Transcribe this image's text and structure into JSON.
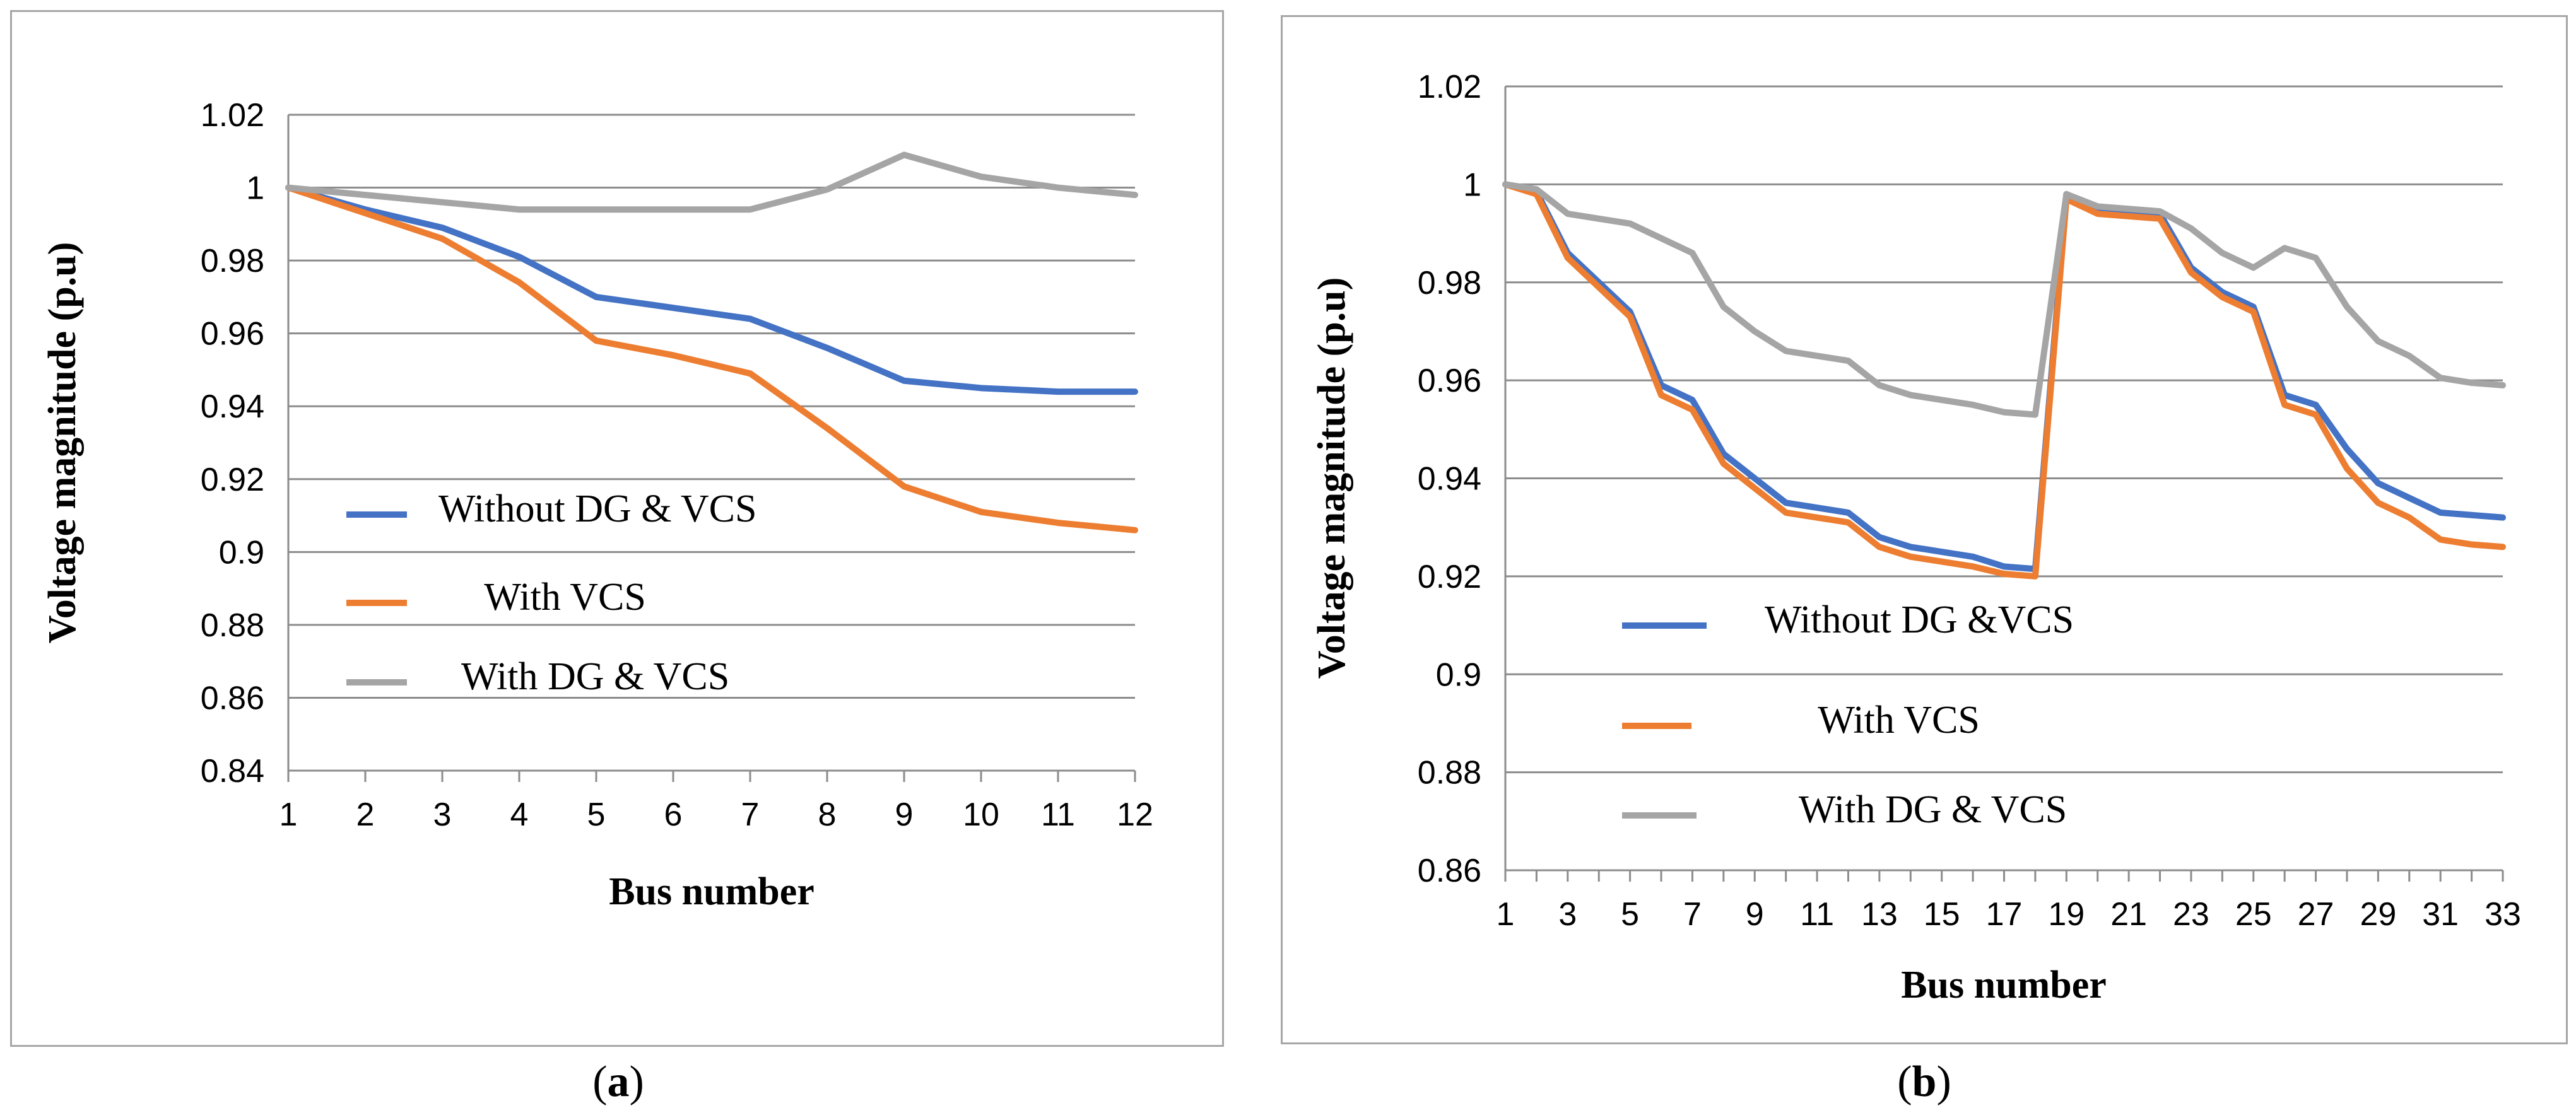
{
  "chart_data": [
    {
      "id": "a",
      "type": "line",
      "caption_label": "a",
      "title": "",
      "xlabel": "Bus number",
      "ylabel": "Voltage magnitude (p.u)",
      "ylim": [
        0.84,
        1.02
      ],
      "yticks": [
        0.84,
        0.86,
        0.88,
        0.9,
        0.92,
        0.94,
        0.96,
        0.98,
        1,
        1.02
      ],
      "ytick_labels": [
        "0.84",
        "0.86",
        "0.88",
        "0.9",
        "0.92",
        "0.94",
        "0.96",
        "0.98",
        "1",
        "1.02"
      ],
      "grid": true,
      "categories": [
        "1",
        "2",
        "3",
        "4",
        "5",
        "6",
        "7",
        "8",
        "9",
        "10",
        "11",
        "12"
      ],
      "x": [
        1,
        2,
        3,
        4,
        5,
        6,
        7,
        8,
        9,
        10,
        11,
        12
      ],
      "series": [
        {
          "name": "Without DG & VCS",
          "color": "#4472c4",
          "values": [
            1.0,
            0.994,
            0.989,
            0.981,
            0.97,
            0.967,
            0.964,
            0.956,
            0.947,
            0.945,
            0.944,
            0.944
          ]
        },
        {
          "name": " With VCS",
          "color": "#ed7d31",
          "values": [
            1.0,
            0.993,
            0.986,
            0.974,
            0.958,
            0.954,
            0.949,
            0.934,
            0.918,
            0.911,
            0.908,
            0.906
          ]
        },
        {
          "name": "With DG & VCS",
          "color": "#a5a5a5",
          "values": [
            1.0,
            0.998,
            0.996,
            0.994,
            0.994,
            0.994,
            0.994,
            0.9995,
            1.009,
            1.003,
            1.0,
            0.998
          ]
        }
      ],
      "legend_position": "center-left"
    },
    {
      "id": "b",
      "type": "line",
      "caption_label": "b",
      "title": "",
      "xlabel": "Bus number",
      "ylabel": "Voltage magnitude (p.u)",
      "ylim": [
        0.86,
        1.02
      ],
      "yticks": [
        0.86,
        0.88,
        0.9,
        0.92,
        0.94,
        0.96,
        0.98,
        1,
        1.02
      ],
      "ytick_labels": [
        "0.86",
        "0.88",
        "0.9",
        "0.92",
        "0.94",
        "0.96",
        "0.98",
        "1",
        "1.02"
      ],
      "grid": true,
      "categories": [
        "1",
        "3",
        "5",
        "7",
        "9",
        "11",
        "13",
        "15",
        "17",
        "19",
        "21",
        "23",
        "25",
        "27",
        "29",
        "31",
        "33"
      ],
      "x": [
        1,
        2,
        3,
        4,
        5,
        6,
        7,
        8,
        9,
        10,
        11,
        12,
        13,
        14,
        15,
        16,
        17,
        18,
        19,
        20,
        21,
        22,
        23,
        24,
        25,
        26,
        27,
        28,
        29,
        30,
        31,
        32,
        33
      ],
      "series": [
        {
          "name": "Without DG &VCS",
          "color": "#4472c4",
          "values": [
            1.0,
            0.9985,
            0.986,
            0.98,
            0.974,
            0.959,
            0.956,
            0.945,
            0.94,
            0.935,
            0.934,
            0.933,
            0.928,
            0.926,
            0.925,
            0.924,
            0.922,
            0.9215,
            0.998,
            0.995,
            0.9945,
            0.994,
            0.983,
            0.978,
            0.975,
            0.957,
            0.955,
            0.946,
            0.939,
            0.936,
            0.933,
            0.9325,
            0.932
          ]
        },
        {
          "name": " With VCS",
          "color": "#ed7d31",
          "values": [
            1.0,
            0.998,
            0.985,
            0.979,
            0.973,
            0.957,
            0.954,
            0.943,
            0.938,
            0.933,
            0.932,
            0.931,
            0.926,
            0.924,
            0.923,
            0.922,
            0.9205,
            0.92,
            0.997,
            0.994,
            0.9935,
            0.993,
            0.982,
            0.977,
            0.974,
            0.955,
            0.953,
            0.942,
            0.935,
            0.932,
            0.9275,
            0.9265,
            0.926
          ]
        },
        {
          "name": "With DG & VCS",
          "color": "#a5a5a5",
          "values": [
            1.0,
            0.999,
            0.994,
            0.993,
            0.992,
            0.989,
            0.986,
            0.975,
            0.97,
            0.966,
            0.965,
            0.964,
            0.959,
            0.957,
            0.956,
            0.955,
            0.9535,
            0.953,
            0.998,
            0.9955,
            0.995,
            0.9945,
            0.991,
            0.986,
            0.983,
            0.987,
            0.985,
            0.975,
            0.968,
            0.965,
            0.9605,
            0.9595,
            0.959
          ]
        }
      ],
      "legend_position": "bottom-left"
    }
  ]
}
